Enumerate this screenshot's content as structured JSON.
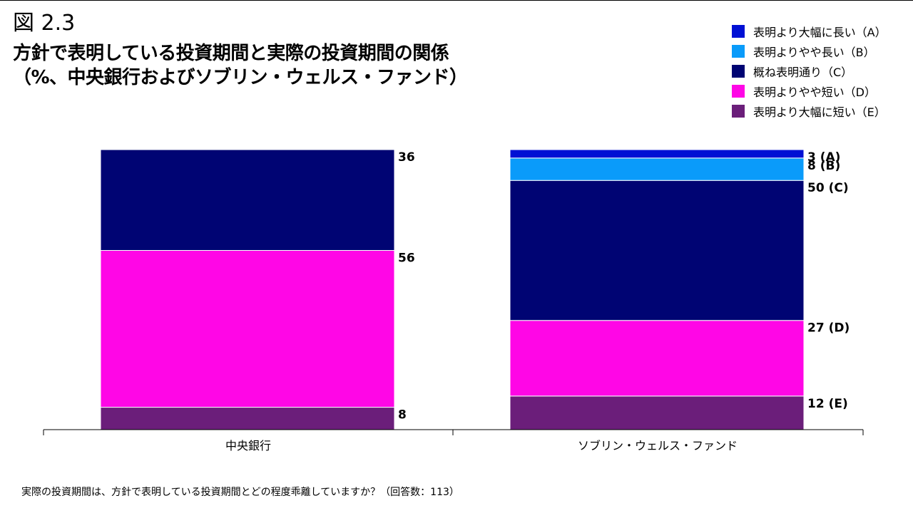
{
  "figure_number": "図 2.3",
  "title_line1": "方針で表明している投資期間と実際の投資期間の関係",
  "title_line2": "（%、中央銀行およびソブリン・ウェルス・ファンド）",
  "footnote": "実際の投資期間は、方針で表明している投資期間とどの程度乖離していますか？（回答数：113）",
  "legend": [
    {
      "label": "表明より大幅に長い（A）",
      "color": "#0010d4"
    },
    {
      "label": "表明よりやや長い（B）",
      "color": "#0a9bfa"
    },
    {
      "label": "概ね表明通り（C）",
      "color": "#000473"
    },
    {
      "label": "表明よりやや短い（D）",
      "color": "#ff06e6"
    },
    {
      "label": "表明より大幅に短い（E）",
      "color": "#6b1e7a"
    }
  ],
  "chart_data": {
    "type": "bar",
    "stacked": true,
    "categories": [
      "中央銀行",
      "ソブリン・ウェルス・ファンド"
    ],
    "ylim": [
      0,
      100
    ],
    "grid": false,
    "legend_position": "top-right",
    "series": [
      {
        "name": "表明より大幅に短い（E）",
        "key": "E",
        "color": "#6b1e7a",
        "values": [
          8,
          12
        ],
        "labels": [
          "8",
          "12 (E)"
        ]
      },
      {
        "name": "表明よりやや短い（D）",
        "key": "D",
        "color": "#ff06e6",
        "values": [
          56,
          27
        ],
        "labels": [
          "56",
          "27 (D)"
        ]
      },
      {
        "name": "概ね表明通り（C）",
        "key": "C",
        "color": "#000473",
        "values": [
          36,
          50
        ],
        "labels": [
          "36",
          "50 (C)"
        ]
      },
      {
        "name": "表明よりやや長い（B）",
        "key": "B",
        "color": "#0a9bfa",
        "values": [
          0,
          8
        ],
        "labels": [
          "",
          "8 (B)"
        ]
      },
      {
        "name": "表明より大幅に長い（A）",
        "key": "A",
        "color": "#0010d4",
        "values": [
          0,
          3
        ],
        "labels": [
          "",
          "3 (A)"
        ]
      }
    ]
  }
}
